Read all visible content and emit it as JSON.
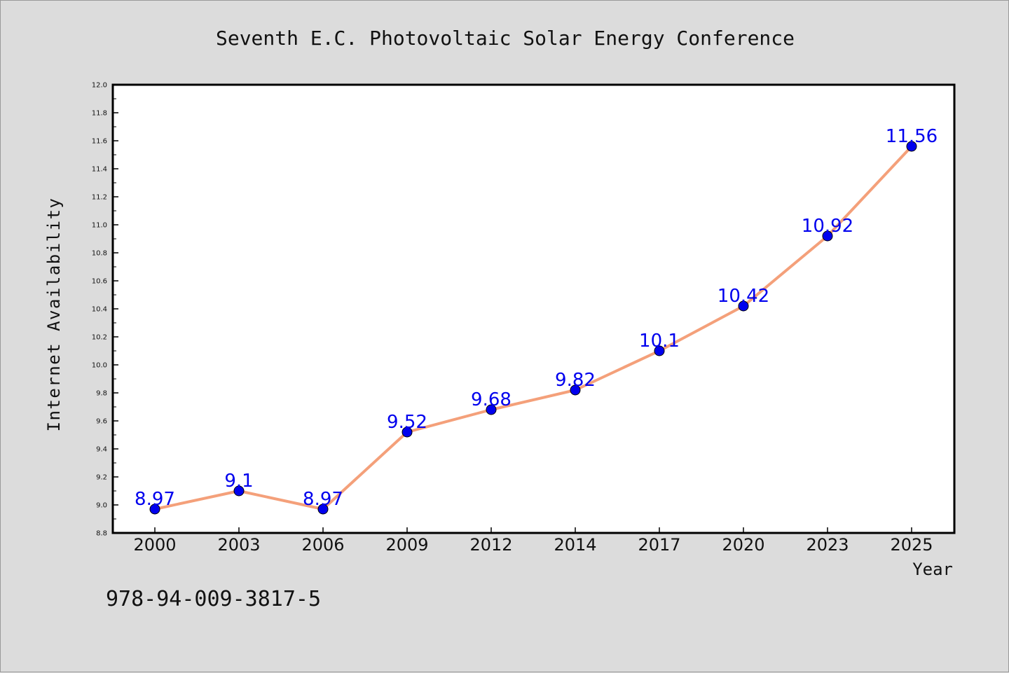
{
  "chart_data": {
    "type": "line",
    "title": "Seventh E.C. Photovoltaic Solar Energy Conference",
    "xlabel": "Year",
    "ylabel": "Internet Availability",
    "footer": "978-94-009-3817-5",
    "categories": [
      "2000",
      "2003",
      "2006",
      "2009",
      "2012",
      "2014",
      "2017",
      "2020",
      "2023",
      "2025"
    ],
    "series": [
      {
        "values": [
          8.97,
          9.1,
          8.97,
          9.52,
          9.68,
          9.82,
          10.1,
          10.42,
          10.92,
          11.56
        ]
      }
    ],
    "data_labels": [
      "8.97",
      "9.1",
      "8.97",
      "9.52",
      "9.68",
      "9.82",
      "10.1",
      "10.42",
      "10.92",
      "11.56"
    ],
    "ylim": [
      8.8,
      12.0
    ],
    "yticks": [
      "8.8",
      "9.0",
      "9.2",
      "9.4",
      "9.6",
      "9.8",
      "10.0",
      "10.2",
      "10.4",
      "10.6",
      "10.8",
      "11.0",
      "11.2",
      "11.4",
      "11.6",
      "11.8",
      "12.0"
    ],
    "grid": false,
    "legend": "none",
    "colors": {
      "line": "#f4a07a",
      "marker": "#0000ee",
      "label": "#0000ee",
      "plot_bg": "#ffffff",
      "figure_bg": "#dcdcdc"
    }
  }
}
